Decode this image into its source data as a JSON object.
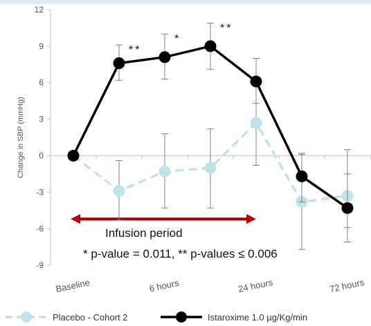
{
  "chart_data": {
    "type": "line",
    "ylabel": "Change in SBP (mmHg)",
    "ylim": [
      -9,
      12
    ],
    "yticks": [
      -9,
      -6,
      -3,
      0,
      3,
      6,
      9,
      12
    ],
    "x_labels": [
      "Baseline",
      "6 hours",
      "24 hours",
      "72 hours"
    ],
    "grid": "none",
    "legend_placement": "bottom",
    "series": [
      {
        "name": "Placebo - Cohort 2",
        "color": "#bfe3e8",
        "style": "dashed",
        "points": [
          {
            "x": 0,
            "y": 0,
            "err_low": 0,
            "err_high": 0
          },
          {
            "x": 1,
            "y": -2.9,
            "err_low": -5.3,
            "err_high": -0.4
          },
          {
            "x": 2,
            "y": -1.3,
            "err_low": -4.3,
            "err_high": 1.8
          },
          {
            "x": 3,
            "y": -1.0,
            "err_low": -4.3,
            "err_high": 2.2
          },
          {
            "x": 4,
            "y": 2.7,
            "err_low": -0.8,
            "err_high": 6.2
          },
          {
            "x": 5,
            "y": -3.8,
            "err_low": -7.7,
            "err_high": 0.1
          },
          {
            "x": 6,
            "y": -3.3,
            "err_low": -5.9,
            "err_high": 0.5
          }
        ]
      },
      {
        "name": "Istaroxime 1.0 µg/Kg/min",
        "color": "#000000",
        "style": "solid",
        "points": [
          {
            "x": 0,
            "y": 0,
            "err_low": 0,
            "err_high": 0
          },
          {
            "x": 1,
            "y": 7.6,
            "err_low": 6.2,
            "err_high": 9.1
          },
          {
            "x": 2,
            "y": 8.1,
            "err_low": 6.3,
            "err_high": 10.0
          },
          {
            "x": 3,
            "y": 9.0,
            "err_low": 7.1,
            "err_high": 10.9
          },
          {
            "x": 4,
            "y": 6.1,
            "err_low": 4.3,
            "err_high": 8.0
          },
          {
            "x": 5,
            "y": -1.7,
            "err_low": -3.8,
            "err_high": 0.2
          },
          {
            "x": 6,
            "y": -4.3,
            "err_low": -7.1,
            "err_high": -1.5
          }
        ]
      }
    ],
    "significance_markers": [
      {
        "x": 1,
        "label": "**"
      },
      {
        "x": 2,
        "label": "*"
      },
      {
        "x": 3,
        "label": "**"
      }
    ],
    "annotations": {
      "infusion_label": "Infusion period",
      "infusion_span": [
        1,
        4
      ],
      "infusion_y": -5.2,
      "infusion_color": "#c00000",
      "pvalue_text": "* p-value = 0.011, ** p-values ≤ 0.006"
    }
  }
}
